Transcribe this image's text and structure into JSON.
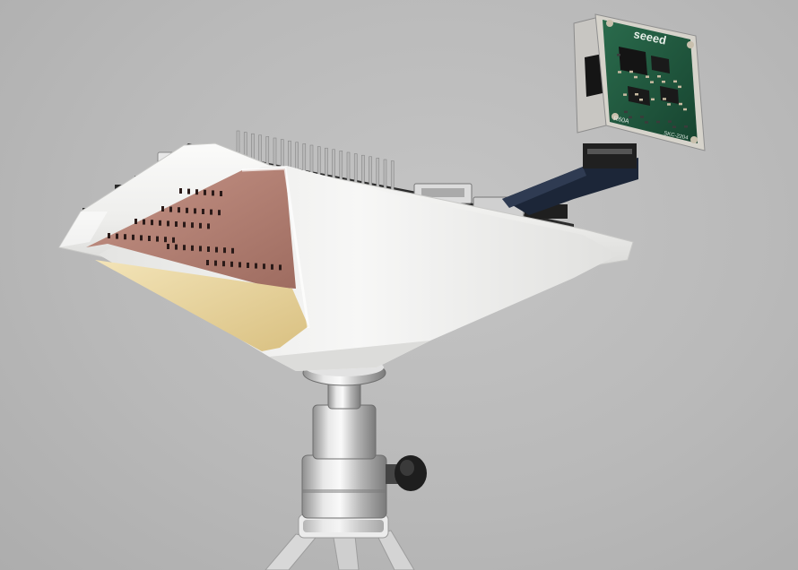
{
  "scene": {
    "background_color": "#b9b9b9",
    "objects": [
      "tripod",
      "ball-head-mount",
      "white-horn-enclosure",
      "radar-board",
      "sensor-module"
    ]
  },
  "module": {
    "brand": "seeed",
    "model_text": "R60A",
    "code_text": "SKC-2204"
  },
  "colors": {
    "enclosure": "#f2f2f0",
    "pcb_green": "#1f5a3e",
    "pcb_copper": "#b8857a",
    "absorber": "#e9d59c",
    "metal": "#c8c8c8"
  }
}
